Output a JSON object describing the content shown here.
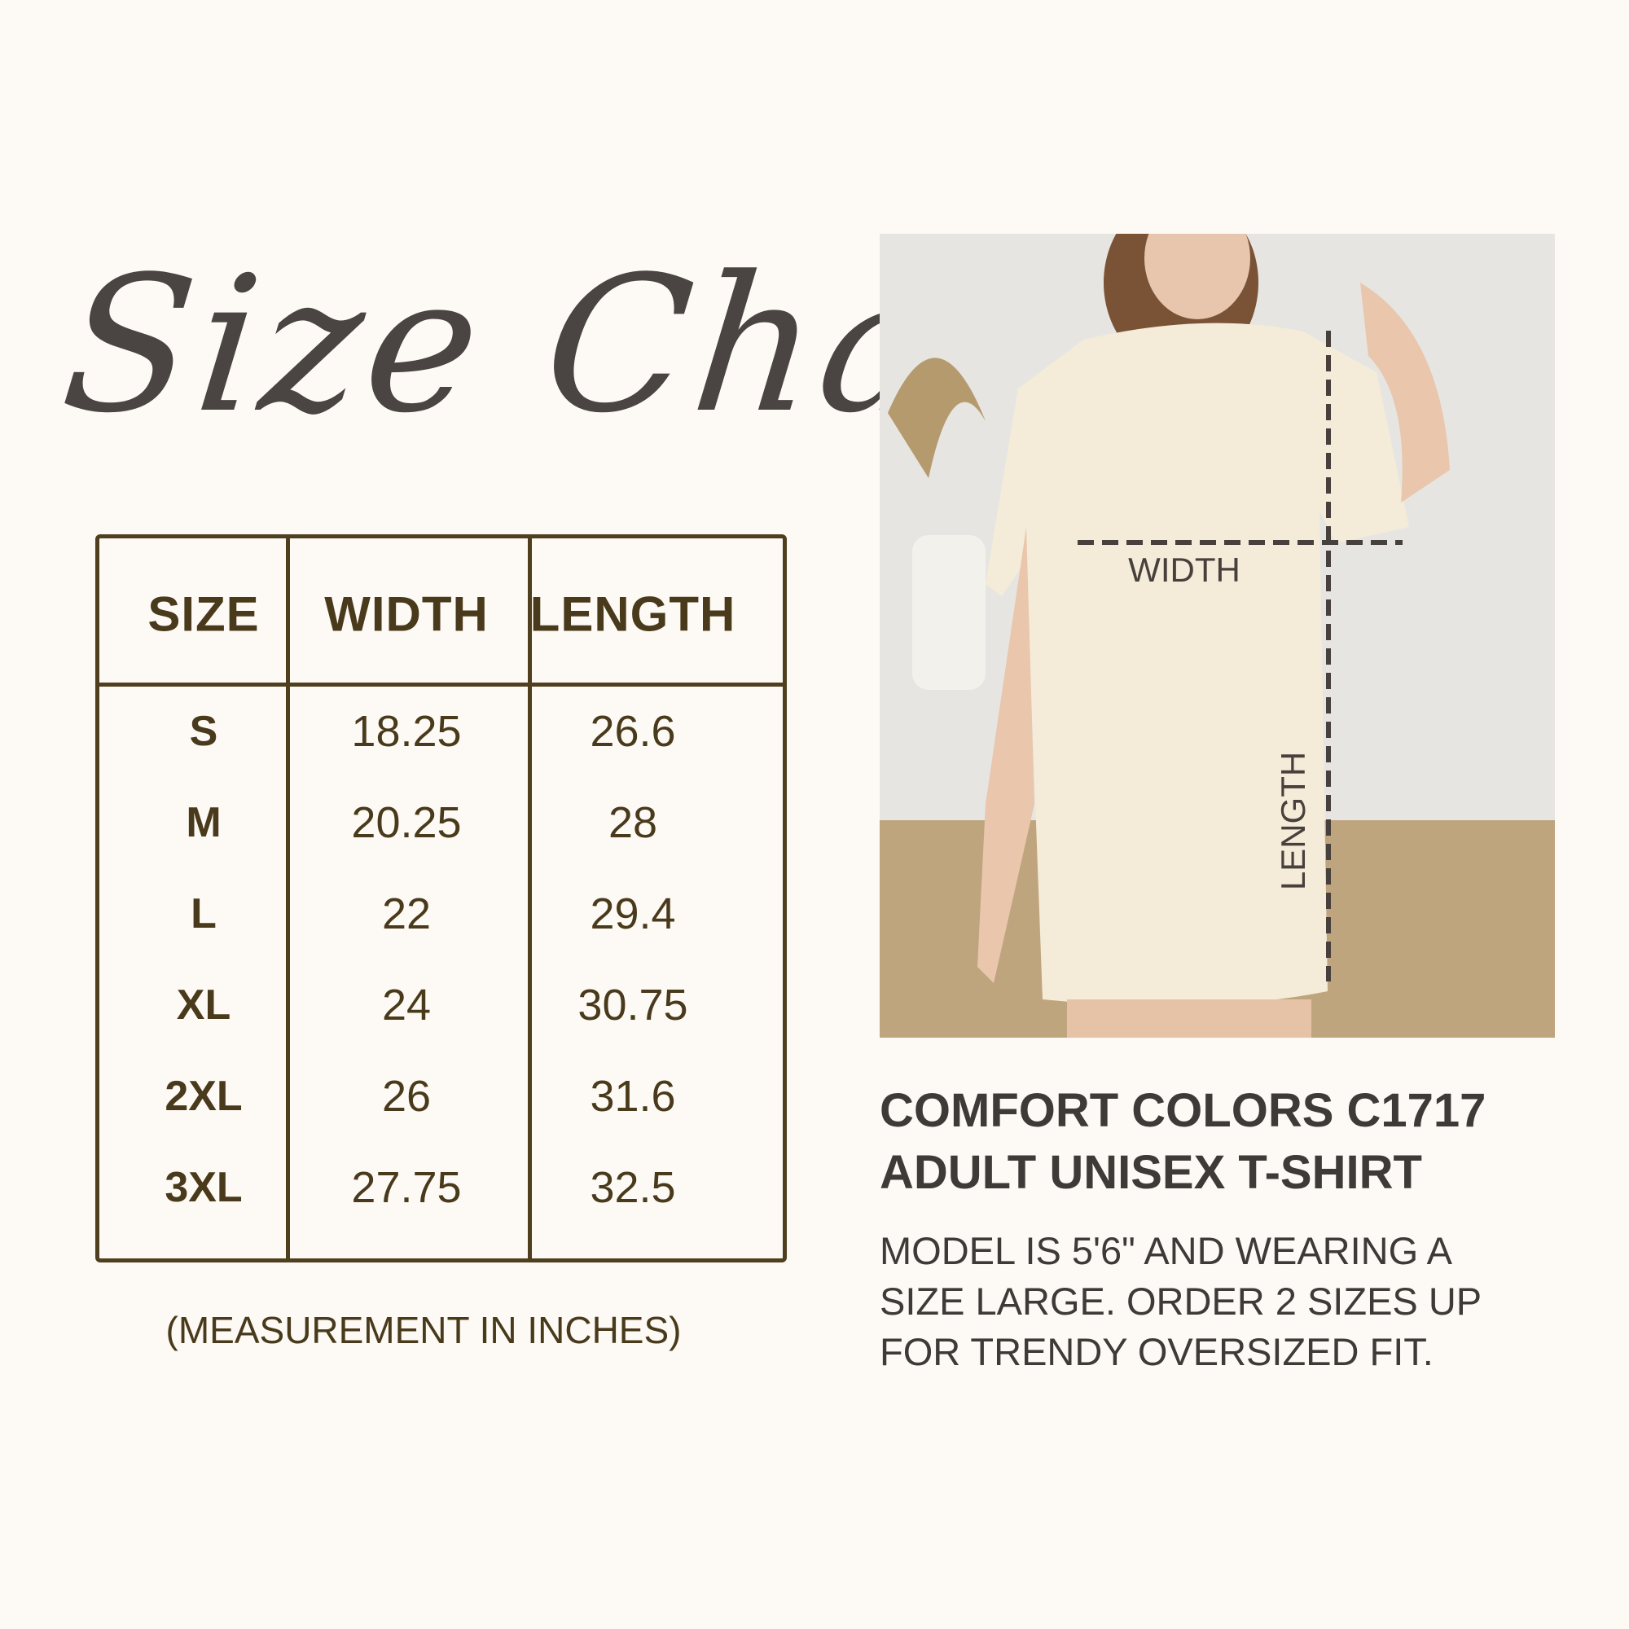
{
  "title": "Size Chart",
  "table": {
    "headers": [
      "SIZE",
      "WIDTH",
      "LENGTH"
    ],
    "rows": [
      [
        "S",
        "18.25",
        "26.6"
      ],
      [
        "M",
        "20.25",
        "28"
      ],
      [
        "L",
        "22",
        "29.4"
      ],
      [
        "XL",
        "24",
        "30.75"
      ],
      [
        "2XL",
        "26",
        "31.6"
      ],
      [
        "3XL",
        "27.75",
        "32.5"
      ]
    ]
  },
  "caption": "(MEASUREMENT IN INCHES)",
  "photo": {
    "width_label": "WIDTH",
    "length_label": "LENGTH"
  },
  "product": {
    "heading": [
      "COMFORT COLORS C1717",
      "ADULT UNISEX T-SHIRT"
    ],
    "note": [
      "MODEL IS 5'6\" AND WEARING A",
      "SIZE LARGE. ORDER 2 SIZES UP",
      "FOR TRENDY OVERSIZED FIT."
    ]
  },
  "colors": {
    "background": "#fdfaf5",
    "table": "#4f3f1f",
    "text": "#3d3a38"
  }
}
